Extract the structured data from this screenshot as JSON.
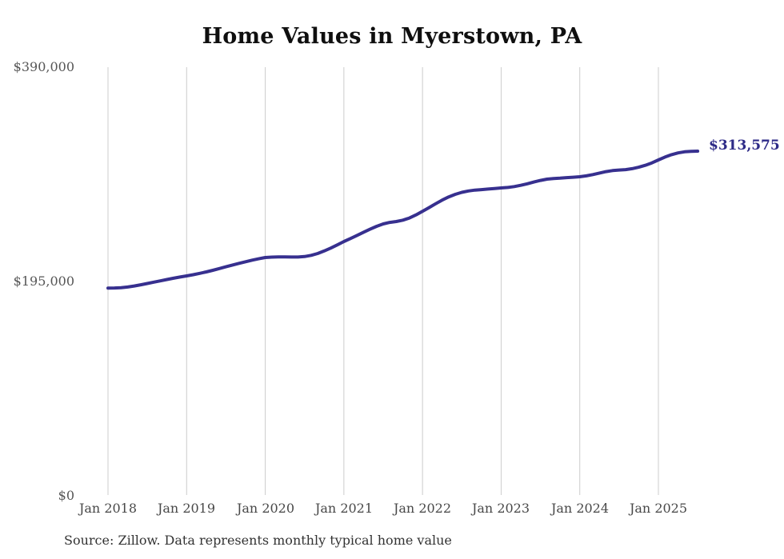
{
  "chart_data": {
    "type": "line",
    "title": "Home Values in Myerstown, PA",
    "ylabel": "",
    "xlabel": "",
    "unit": "USD",
    "frequency": "monthly",
    "x_start": "Jan 2018",
    "x_end": "Jul 2025",
    "values": [
      189000,
      189100,
      189400,
      190000,
      190900,
      192000,
      193200,
      194400,
      195600,
      196800,
      198000,
      199100,
      200100,
      201200,
      202400,
      203700,
      205200,
      206800,
      208400,
      210000,
      211500,
      213000,
      214400,
      215700,
      216800,
      217200,
      217400,
      217400,
      217300,
      217300,
      217700,
      218800,
      220500,
      222800,
      225400,
      228300,
      231400,
      234100,
      236900,
      239800,
      242600,
      245200,
      247400,
      248800,
      249600,
      250800,
      252800,
      255600,
      258900,
      262200,
      265700,
      269100,
      272000,
      274300,
      276100,
      277400,
      278200,
      278600,
      279100,
      279600,
      280100,
      280600,
      281400,
      282500,
      283900,
      285500,
      287000,
      288100,
      288700,
      289000,
      289500,
      289900,
      290300,
      291100,
      292300,
      293700,
      295000,
      295900,
      296400,
      296800,
      297700,
      299000,
      300700,
      302900,
      305600,
      308200,
      310400,
      312000,
      313000,
      313400,
      313575
    ],
    "final_value": 313575,
    "end_label": "$313,575",
    "ylim": [
      0,
      390000
    ],
    "y_tick_values": [
      390000,
      195000,
      0
    ],
    "y_tick_labels": [
      "$390,000",
      "$195,000",
      "$0"
    ],
    "x_tick_labels": [
      "Jan 2018",
      "Jan 2019",
      "Jan 2020",
      "Jan 2021",
      "Jan 2022",
      "Jan 2023",
      "Jan 2024",
      "Jan 2025"
    ],
    "x_tick_indices": [
      0,
      12,
      24,
      36,
      48,
      60,
      72,
      84
    ],
    "grid": "vertical-only",
    "legend": "none",
    "colors": {
      "line": "#37308f",
      "end_label": "#2d2a87",
      "gridline": "#cccccc",
      "title": "#0f0f0f",
      "tick_text": "#565656",
      "source_text": "#333333"
    },
    "source_note": "Source: Zillow. Data represents monthly typical home value"
  }
}
